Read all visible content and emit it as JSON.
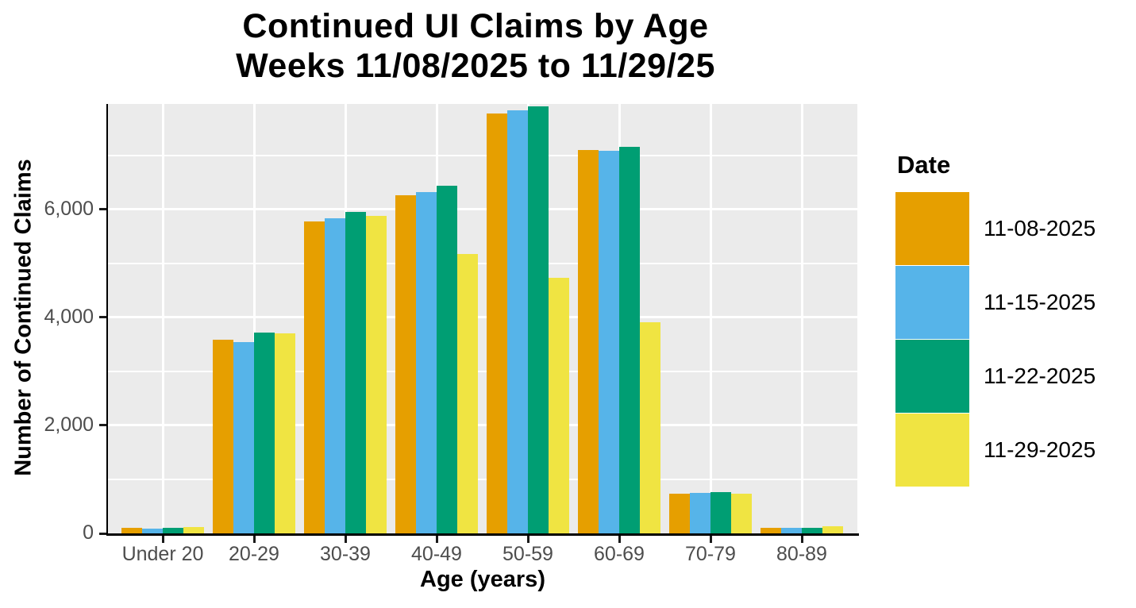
{
  "title": {
    "line1": "Continued UI Claims by Age",
    "line2": "Weeks 11/08/2025 to 11/29/25"
  },
  "axes": {
    "x_title": "Age (years)",
    "y_title": "Number of Continued Claims",
    "y_ticks": [
      {
        "value": 0,
        "label": "0"
      },
      {
        "value": 2000,
        "label": "2,000"
      },
      {
        "value": 4000,
        "label": "4,000"
      },
      {
        "value": 6000,
        "label": "6,000"
      }
    ],
    "y_minor_ticks": [
      1000,
      3000,
      5000,
      7000
    ]
  },
  "legend": {
    "title": "Date"
  },
  "chart_data": {
    "type": "bar",
    "title": "Continued UI Claims by Age — Weeks 11/08/2025 to 11/29/25",
    "xlabel": "Age (years)",
    "ylabel": "Number of Continued Claims",
    "categories": [
      "Under 20",
      "20-29",
      "30-39",
      "40-49",
      "50-59",
      "60-69",
      "70-79",
      "80-89"
    ],
    "series": [
      {
        "name": "11-08-2025",
        "color": "#E69F00",
        "values": [
          105,
          3590,
          5780,
          6260,
          7775,
          7100,
          730,
          110
        ]
      },
      {
        "name": "11-15-2025",
        "color": "#56B4E9",
        "values": [
          95,
          3545,
          5840,
          6320,
          7835,
          7085,
          755,
          105
        ]
      },
      {
        "name": "11-22-2025",
        "color": "#009E73",
        "values": [
          105,
          3720,
          5950,
          6440,
          7910,
          7160,
          765,
          100
        ]
      },
      {
        "name": "11-29-2025",
        "color": "#F0E442",
        "values": [
          115,
          3705,
          5885,
          5175,
          4725,
          3910,
          730,
          125
        ]
      }
    ],
    "ylim": [
      0,
      7950
    ],
    "grid": true,
    "legend_position": "right",
    "legend_title": "Date",
    "colors": {
      "panel_background": "#EBEBEB",
      "gridline": "#FFFFFF",
      "tick_text": "#4D4D4D",
      "title_text": "#000000"
    }
  }
}
